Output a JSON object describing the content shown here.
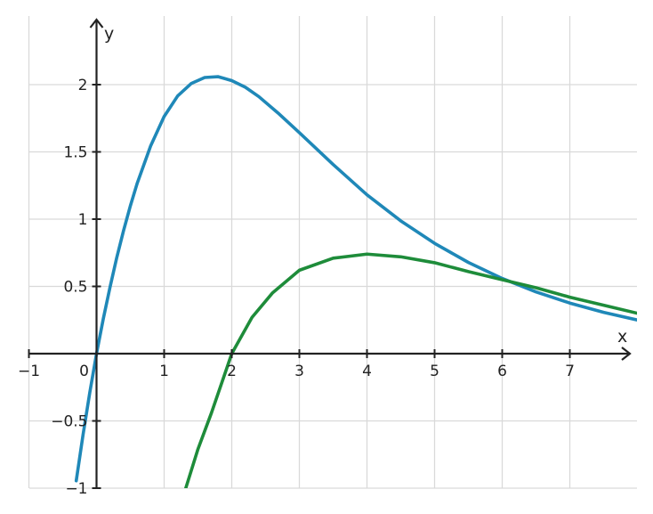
{
  "chart_data": {
    "type": "line",
    "title": "",
    "xlabel": "x",
    "ylabel": "y",
    "xlim": [
      -1,
      8
    ],
    "ylim": [
      -1,
      2.3
    ],
    "grid": true,
    "x_ticks": [
      {
        "value": -1,
        "label": "−1"
      },
      {
        "value": 0,
        "label": "0"
      },
      {
        "value": 1,
        "label": "1"
      },
      {
        "value": 2,
        "label": "2"
      },
      {
        "value": 3,
        "label": "3"
      },
      {
        "value": 4,
        "label": "4"
      },
      {
        "value": 5,
        "label": "5"
      },
      {
        "value": 6,
        "label": "6"
      },
      {
        "value": 7,
        "label": "7"
      }
    ],
    "y_ticks": [
      {
        "value": -1,
        "label": "−1"
      },
      {
        "value": -0.5,
        "label": "−0.5"
      },
      {
        "value": 0.5,
        "label": "0.5"
      },
      {
        "value": 1,
        "label": "1"
      },
      {
        "value": 1.5,
        "label": "1.5"
      },
      {
        "value": 2,
        "label": "2"
      }
    ],
    "series": [
      {
        "color": "#1f88b8",
        "x": [
          -0.3,
          -0.2,
          -0.1,
          0,
          0.1,
          0.2,
          0.3,
          0.4,
          0.5,
          0.6,
          0.8,
          1,
          1.2,
          1.4,
          1.6,
          1.8,
          2,
          2.2,
          2.4,
          2.7,
          3,
          3.5,
          4,
          4.5,
          5,
          5.5,
          6,
          6.5,
          7,
          7.5,
          8
        ],
        "y": [
          -0.945,
          -0.605,
          -0.29,
          0,
          0.259,
          0.495,
          0.716,
          0.915,
          1.098,
          1.264,
          1.544,
          1.763,
          1.916,
          2.008,
          2.053,
          2.059,
          2.03,
          1.981,
          1.911,
          1.782,
          1.643,
          1.406,
          1.181,
          0.987,
          0.82,
          0.678,
          0.559,
          0.459,
          0.376,
          0.307,
          0.25
        ]
      },
      {
        "color": "#1e8c3a",
        "x": [
          1.32,
          1.5,
          1.7,
          2,
          2.3,
          2.6,
          3,
          3.5,
          4,
          4.5,
          5,
          5.5,
          6,
          6.5,
          7,
          7.5,
          8
        ],
        "y": [
          -1,
          -0.71,
          -0.44,
          0,
          0.27,
          0.45,
          0.62,
          0.71,
          0.74,
          0.72,
          0.676,
          0.61,
          0.55,
          0.49,
          0.42,
          0.36,
          0.3
        ]
      }
    ]
  }
}
